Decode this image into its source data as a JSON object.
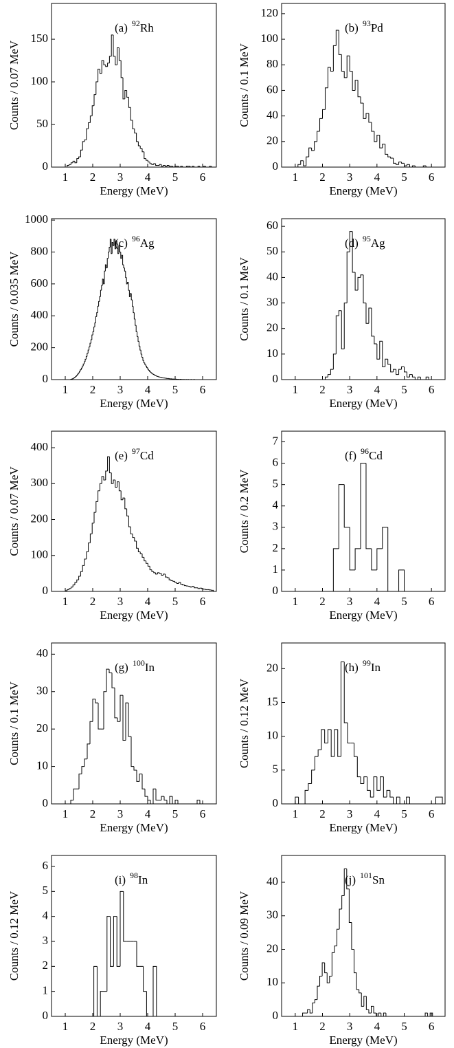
{
  "chart_data": [
    {
      "type": "histogram",
      "ylabel": "Counts / 0.07 MeV",
      "xlabel": "Energy (MeV)",
      "label": {
        "panel": "(a)",
        "mass": "92",
        "element": "Rh"
      },
      "color": "#000000",
      "xlim": [
        0.5,
        6.5
      ],
      "ylim": [
        0,
        192
      ],
      "xticks": [
        1,
        2,
        3,
        4,
        5,
        6
      ],
      "yticks": [
        0,
        50,
        100,
        150
      ],
      "bins": [
        1.0,
        1.07,
        1.14,
        1.21,
        1.28,
        1.35,
        1.42,
        1.49,
        1.56,
        1.63,
        1.7,
        1.77,
        1.84,
        1.91,
        1.98,
        2.05,
        2.12,
        2.19,
        2.26,
        2.33,
        2.4,
        2.47,
        2.54,
        2.61,
        2.68,
        2.75,
        2.82,
        2.89,
        2.96,
        3.03,
        3.1,
        3.17,
        3.24,
        3.31,
        3.38,
        3.45,
        3.52,
        3.59,
        3.66,
        3.73,
        3.8,
        3.87,
        3.94,
        4.01,
        4.08,
        4.15,
        4.22,
        4.29,
        4.36,
        4.43,
        4.5,
        4.57,
        4.64,
        4.71,
        4.78,
        4.85,
        4.92,
        4.99,
        5.06,
        5.13,
        5.2,
        5.27,
        5.34,
        5.41,
        5.48,
        5.55,
        5.62,
        5.69,
        5.76,
        5.83,
        5.9,
        5.97,
        6.04,
        6.11,
        6.18,
        6.25,
        6.32,
        6.39
      ],
      "counts": [
        0,
        2,
        3,
        5,
        7,
        5,
        10,
        12,
        20,
        30,
        32,
        45,
        52,
        60,
        72,
        85,
        100,
        115,
        110,
        125,
        120,
        118,
        122,
        130,
        155,
        130,
        120,
        140,
        125,
        105,
        80,
        90,
        82,
        70,
        55,
        45,
        40,
        30,
        25,
        22,
        18,
        10,
        8,
        6,
        4,
        3,
        4,
        2,
        2,
        3,
        1,
        2,
        1,
        2,
        1,
        1,
        0,
        1,
        1,
        0,
        1,
        0,
        0,
        1,
        1,
        0,
        1,
        0,
        0,
        1,
        0,
        0,
        1,
        0,
        0,
        1,
        0
      ]
    },
    {
      "type": "histogram",
      "ylabel": "Counts / 0.1 MeV",
      "xlabel": "Energy (MeV)",
      "label": {
        "panel": "(b)",
        "mass": "93",
        "element": "Pd"
      },
      "color": "#000000",
      "xlim": [
        0.5,
        6.5
      ],
      "ylim": [
        0,
        128
      ],
      "xticks": [
        1,
        2,
        3,
        4,
        5,
        6
      ],
      "yticks": [
        0,
        20,
        40,
        60,
        80,
        100,
        120
      ],
      "bins": [
        1.1,
        1.2,
        1.3,
        1.4,
        1.5,
        1.6,
        1.7,
        1.8,
        1.9,
        2,
        2.1,
        2.2,
        2.3,
        2.4,
        2.5,
        2.6,
        2.7,
        2.8,
        2.9,
        3,
        3.1,
        3.2,
        3.3,
        3.4,
        3.5,
        3.6,
        3.7,
        3.8,
        3.9,
        4,
        4.1,
        4.2,
        4.3,
        4.4,
        4.5,
        4.6,
        4.7,
        4.8,
        4.9,
        5,
        5.1,
        5.2,
        5.3,
        5.4,
        5.5,
        5.6,
        5.7,
        5.8,
        5.9,
        6
      ],
      "counts": [
        2,
        5,
        1,
        8,
        15,
        13,
        20,
        28,
        38,
        45,
        62,
        78,
        75,
        95,
        107,
        88,
        75,
        70,
        87,
        75,
        60,
        68,
        55,
        50,
        38,
        42,
        35,
        28,
        20,
        25,
        15,
        18,
        10,
        8,
        7,
        3,
        2,
        4,
        3,
        1,
        2,
        0,
        1,
        0,
        0,
        0,
        1,
        0,
        0
      ]
    },
    {
      "type": "histogram",
      "ylabel": "Counts / 0.035 MeV",
      "xlabel": "Energy (MeV)",
      "label": {
        "panel": "(c)",
        "mass": "96",
        "element": "Ag"
      },
      "color": "#000000",
      "xlim": [
        0.5,
        6.5
      ],
      "ylim": [
        0,
        1009
      ],
      "xticks": [
        1,
        2,
        3,
        4,
        5,
        6
      ],
      "yticks": [
        0,
        200,
        400,
        600,
        800,
        1000
      ],
      "bins": [
        1.2,
        1.235,
        1.27,
        1.305,
        1.34,
        1.375,
        1.41,
        1.445,
        1.48,
        1.515,
        1.55,
        1.585,
        1.62,
        1.655,
        1.69,
        1.725,
        1.76,
        1.795,
        1.83,
        1.865,
        1.9,
        1.935,
        1.97,
        2.005,
        2.04,
        2.075,
        2.11,
        2.145,
        2.18,
        2.215,
        2.25,
        2.285,
        2.32,
        2.355,
        2.39,
        2.425,
        2.46,
        2.495,
        2.53,
        2.565,
        2.6,
        2.635,
        2.67,
        2.705,
        2.74,
        2.775,
        2.81,
        2.845,
        2.88,
        2.915,
        2.95,
        2.985,
        3.02,
        3.055,
        3.09,
        3.125,
        3.16,
        3.195,
        3.23,
        3.265,
        3.3,
        3.335,
        3.37,
        3.405,
        3.44,
        3.475,
        3.51,
        3.545,
        3.58,
        3.615,
        3.65,
        3.685,
        3.72,
        3.755,
        3.79,
        3.825,
        3.86,
        3.895,
        3.93,
        3.965,
        4.0,
        4.035,
        4.07,
        4.105,
        4.14,
        4.175,
        4.21,
        4.245,
        4.28,
        4.315,
        4.35,
        4.385,
        4.42,
        4.455,
        4.49,
        4.525,
        4.56,
        4.595,
        4.63,
        4.665,
        4.7,
        4.735,
        4.77,
        4.805,
        4.84,
        4.875,
        4.91,
        4.945,
        4.98,
        5.015,
        5.05,
        5.085,
        5.12,
        5.155,
        5.19,
        5.225,
        5.26,
        5.295,
        5.33,
        5.365,
        5.4,
        5.435,
        5.47,
        5.505,
        5.54,
        5.575,
        5.61,
        5.645,
        5.68,
        5.715,
        5.75
      ],
      "counts": [
        2,
        4,
        6,
        10,
        14,
        20,
        26,
        34,
        42,
        52,
        62,
        72,
        85,
        98,
        112,
        128,
        145,
        165,
        185,
        205,
        228,
        250,
        280,
        300,
        330,
        355,
        395,
        420,
        460,
        490,
        520,
        560,
        590,
        630,
        600,
        680,
        720,
        700,
        760,
        800,
        830,
        880,
        790,
        860,
        840,
        880,
        820,
        870,
        850,
        790,
        840,
        800,
        760,
        780,
        720,
        700,
        680,
        640,
        600,
        610,
        560,
        520,
        540,
        500,
        460,
        420,
        380,
        340,
        300,
        270,
        240,
        210,
        185,
        160,
        140,
        120,
        105,
        95,
        85,
        75,
        65,
        58,
        50,
        44,
        40,
        35,
        32,
        28,
        25,
        22,
        20,
        18,
        16,
        15,
        13,
        12,
        10,
        10,
        9,
        8,
        7,
        7,
        6,
        5,
        5,
        4,
        4,
        3,
        3,
        3,
        2,
        2,
        2,
        1,
        2,
        1,
        1,
        1,
        1,
        0,
        1,
        0,
        1,
        0,
        0,
        1,
        0,
        0,
        1,
        0
      ]
    },
    {
      "type": "histogram",
      "ylabel": "Counts / 0.1 MeV",
      "xlabel": "Energy (MeV)",
      "label": {
        "panel": "(d)",
        "mass": "95",
        "element": "Ag"
      },
      "color": "#000000",
      "xlim": [
        0.5,
        6.5
      ],
      "ylim": [
        0,
        63
      ],
      "xticks": [
        1,
        2,
        3,
        4,
        5,
        6
      ],
      "yticks": [
        0,
        10,
        20,
        30,
        40,
        50,
        60
      ],
      "bins": [
        2.1,
        2.2,
        2.3,
        2.4,
        2.5,
        2.6,
        2.7,
        2.8,
        2.9,
        3,
        3.1,
        3.2,
        3.3,
        3.4,
        3.5,
        3.6,
        3.7,
        3.8,
        3.9,
        4,
        4.1,
        4.2,
        4.3,
        4.4,
        4.5,
        4.6,
        4.7,
        4.8,
        4.9,
        5,
        5.1,
        5.2,
        5.3,
        5.4,
        5.5,
        5.6,
        5.7,
        5.8,
        5.9,
        6
      ],
      "counts": [
        1,
        2,
        4,
        10,
        25,
        27,
        12,
        30,
        50,
        58,
        42,
        35,
        40,
        41,
        30,
        22,
        28,
        17,
        14,
        8,
        15,
        5,
        8,
        6,
        3,
        4,
        2,
        4,
        5,
        3,
        1,
        2,
        1,
        0,
        1,
        0,
        0,
        1,
        0
      ]
    },
    {
      "type": "histogram",
      "ylabel": "Counts / 0.07 MeV",
      "xlabel": "Energy (MeV)",
      "label": {
        "panel": "(e)",
        "mass": "97",
        "element": "Cd"
      },
      "color": "#000000",
      "xlim": [
        0.5,
        6.5
      ],
      "ylim": [
        0,
        446
      ],
      "xticks": [
        1,
        2,
        3,
        4,
        5,
        6
      ],
      "yticks": [
        0,
        100,
        200,
        300,
        400
      ],
      "bins": [
        1.0,
        1.07,
        1.14,
        1.21,
        1.28,
        1.35,
        1.42,
        1.49,
        1.56,
        1.63,
        1.7,
        1.77,
        1.84,
        1.91,
        1.98,
        2.05,
        2.12,
        2.19,
        2.26,
        2.33,
        2.4,
        2.47,
        2.54,
        2.61,
        2.68,
        2.75,
        2.82,
        2.89,
        2.96,
        3.03,
        3.1,
        3.17,
        3.24,
        3.31,
        3.38,
        3.45,
        3.52,
        3.59,
        3.66,
        3.73,
        3.8,
        3.87,
        3.94,
        4.01,
        4.08,
        4.15,
        4.22,
        4.29,
        4.36,
        4.43,
        4.5,
        4.57,
        4.64,
        4.71,
        4.78,
        4.85,
        4.92,
        4.99,
        5.06,
        5.13,
        5.2,
        5.27,
        5.34,
        5.41,
        5.48,
        5.55,
        5.62,
        5.69,
        5.76,
        5.83,
        5.9,
        5.97,
        6.04,
        6.11,
        6.18,
        6.25,
        6.32,
        6.39
      ],
      "counts": [
        2,
        5,
        8,
        12,
        18,
        25,
        32,
        42,
        55,
        72,
        90,
        110,
        135,
        160,
        190,
        220,
        250,
        280,
        300,
        320,
        310,
        335,
        375,
        330,
        300,
        310,
        290,
        305,
        280,
        255,
        260,
        230,
        210,
        180,
        160,
        150,
        140,
        120,
        110,
        105,
        95,
        85,
        78,
        70,
        60,
        55,
        52,
        48,
        52,
        50,
        45,
        48,
        40,
        38,
        32,
        30,
        28,
        25,
        22,
        25,
        20,
        18,
        16,
        15,
        14,
        12,
        14,
        10,
        10,
        8,
        9,
        7,
        6,
        5,
        5,
        4,
        3
      ]
    },
    {
      "type": "histogram",
      "ylabel": "Counts / 0.2 MeV",
      "xlabel": "Energy (MeV)",
      "label": {
        "panel": "(f)",
        "mass": "96",
        "element": "Cd"
      },
      "color": "#000000",
      "xlim": [
        0.5,
        6.5
      ],
      "ylim": [
        0,
        7.5
      ],
      "xticks": [
        1,
        2,
        3,
        4,
        5,
        6
      ],
      "yticks": [
        0,
        1,
        2,
        3,
        4,
        5,
        6,
        7
      ],
      "bins": [
        2.4,
        2.6,
        2.8,
        3,
        3.2,
        3.4,
        3.6,
        3.8,
        4,
        4.2,
        4.4,
        4.6,
        4.8,
        5
      ],
      "counts": [
        2,
        5,
        3,
        1,
        2,
        6,
        2,
        1,
        2,
        3,
        0,
        0,
        1
      ]
    },
    {
      "type": "histogram",
      "ylabel": "Counts / 0.1 MeV",
      "xlabel": "Energy (MeV)",
      "label": {
        "panel": "(g)",
        "mass": "100",
        "element": "In"
      },
      "color": "#000000",
      "xlim": [
        0.5,
        6.5
      ],
      "ylim": [
        0,
        43
      ],
      "xticks": [
        1,
        2,
        3,
        4,
        5,
        6
      ],
      "yticks": [
        0,
        10,
        20,
        30,
        40
      ],
      "bins": [
        1.2,
        1.3,
        1.4,
        1.5,
        1.6,
        1.7,
        1.8,
        1.9,
        2,
        2.1,
        2.2,
        2.3,
        2.4,
        2.5,
        2.6,
        2.7,
        2.8,
        2.9,
        3,
        3.1,
        3.2,
        3.3,
        3.4,
        3.5,
        3.6,
        3.7,
        3.8,
        3.9,
        4,
        4.1,
        4.2,
        4.3,
        4.4,
        4.5,
        4.6,
        4.7,
        4.8,
        4.9,
        5,
        5.1,
        5.2,
        5.3,
        5.4,
        5.5,
        5.6,
        5.7,
        5.8,
        5.9,
        6
      ],
      "counts": [
        1,
        4,
        4,
        8,
        10,
        12,
        16,
        22,
        28,
        27,
        20,
        20,
        30,
        36,
        35,
        31,
        23,
        22,
        29,
        17,
        27,
        18,
        10,
        9,
        6,
        8,
        4,
        2,
        1,
        0,
        4,
        1,
        1,
        2,
        1,
        0,
        2,
        0,
        1,
        0,
        0,
        0,
        0,
        0,
        0,
        0,
        1,
        0
      ]
    },
    {
      "type": "histogram",
      "ylabel": "Counts / 0.12 MeV",
      "xlabel": "Energy (MeV)",
      "label": {
        "panel": "(h)",
        "mass": "99",
        "element": "In"
      },
      "color": "#000000",
      "xlim": [
        0.5,
        6.5
      ],
      "ylim": [
        0,
        23.8
      ],
      "xticks": [
        1,
        2,
        3,
        4,
        5,
        6
      ],
      "yticks": [
        0,
        5,
        10,
        15,
        20
      ],
      "bins": [
        1,
        1.12,
        1.24,
        1.36,
        1.48,
        1.6,
        1.72,
        1.84,
        1.96,
        2.08,
        2.2,
        2.32,
        2.44,
        2.56,
        2.68,
        2.8,
        2.92,
        3.04,
        3.16,
        3.28,
        3.4,
        3.52,
        3.64,
        3.76,
        3.88,
        4,
        4.12,
        4.24,
        4.36,
        4.48,
        4.6,
        4.72,
        4.84,
        4.96,
        5.08,
        5.2,
        5.32,
        5.44,
        5.56,
        5.68,
        5.8,
        5.92,
        6.04,
        6.16,
        6.28,
        6.4
      ],
      "counts": [
        1,
        0,
        0,
        2,
        3,
        5,
        7,
        8,
        11,
        9,
        11,
        7,
        11,
        7,
        21,
        12,
        9,
        9,
        7,
        4,
        3,
        4,
        2,
        1,
        4,
        2,
        4,
        1,
        2,
        1,
        0,
        1,
        0,
        0,
        1,
        0,
        0,
        0,
        0,
        0,
        0,
        0,
        0,
        1,
        1
      ]
    },
    {
      "type": "histogram",
      "ylabel": "Counts / 0.12 MeV",
      "xlabel": "Energy (MeV)",
      "label": {
        "panel": "(i)",
        "mass": "98",
        "element": "In"
      },
      "color": "#000000",
      "xlim": [
        0.5,
        6.5
      ],
      "ylim": [
        0,
        6.44
      ],
      "xticks": [
        1,
        2,
        3,
        4,
        5,
        6
      ],
      "yticks": [
        0,
        1,
        2,
        3,
        4,
        5,
        6
      ],
      "bins": [
        2.04,
        2.16,
        2.28,
        2.4,
        2.52,
        2.64,
        2.76,
        2.88,
        3,
        3.12,
        3.24,
        3.36,
        3.48,
        3.6,
        3.72,
        3.84,
        3.96,
        4.08,
        4.2,
        4.32
      ],
      "counts": [
        2,
        0,
        1,
        1,
        4,
        2,
        4,
        2,
        5,
        3,
        3,
        3,
        3,
        2,
        2,
        1,
        0,
        0,
        2
      ]
    },
    {
      "type": "histogram",
      "ylabel": "Counts / 0.09 MeV",
      "xlabel": "Energy (MeV)",
      "label": {
        "panel": "(j)",
        "mass": "101",
        "element": "Sn"
      },
      "color": "#000000",
      "xlim": [
        0.5,
        6.5
      ],
      "ylim": [
        0,
        48
      ],
      "xticks": [
        1,
        2,
        3,
        4,
        5,
        6
      ],
      "yticks": [
        0,
        10,
        20,
        30,
        40
      ],
      "bins": [
        1.27,
        1.36,
        1.45,
        1.54,
        1.63,
        1.72,
        1.81,
        1.9,
        1.99,
        2.08,
        2.17,
        2.26,
        2.35,
        2.44,
        2.53,
        2.62,
        2.71,
        2.8,
        2.89,
        2.98,
        3.07,
        3.16,
        3.25,
        3.34,
        3.43,
        3.52,
        3.61,
        3.7,
        3.79,
        3.88,
        3.97,
        4.06,
        4.15,
        4.24,
        4.33,
        4.42,
        4.51,
        4.6,
        4.69,
        4.78,
        4.87,
        4.96,
        5.05,
        5.14,
        5.23,
        5.32,
        5.41,
        5.5,
        5.59,
        5.68,
        5.77,
        5.86,
        5.95,
        6.04
      ],
      "counts": [
        1,
        1,
        2,
        1,
        4,
        5,
        9,
        12,
        16,
        13,
        10,
        12,
        19,
        21,
        26,
        32,
        36,
        44,
        38,
        28,
        20,
        13,
        8,
        7,
        3,
        6,
        2,
        1,
        3,
        1,
        0,
        1,
        0,
        1,
        0,
        0,
        0,
        0,
        0,
        0,
        0,
        0,
        0,
        0,
        0,
        0,
        0,
        0,
        0,
        0,
        1,
        0,
        1
      ]
    }
  ]
}
